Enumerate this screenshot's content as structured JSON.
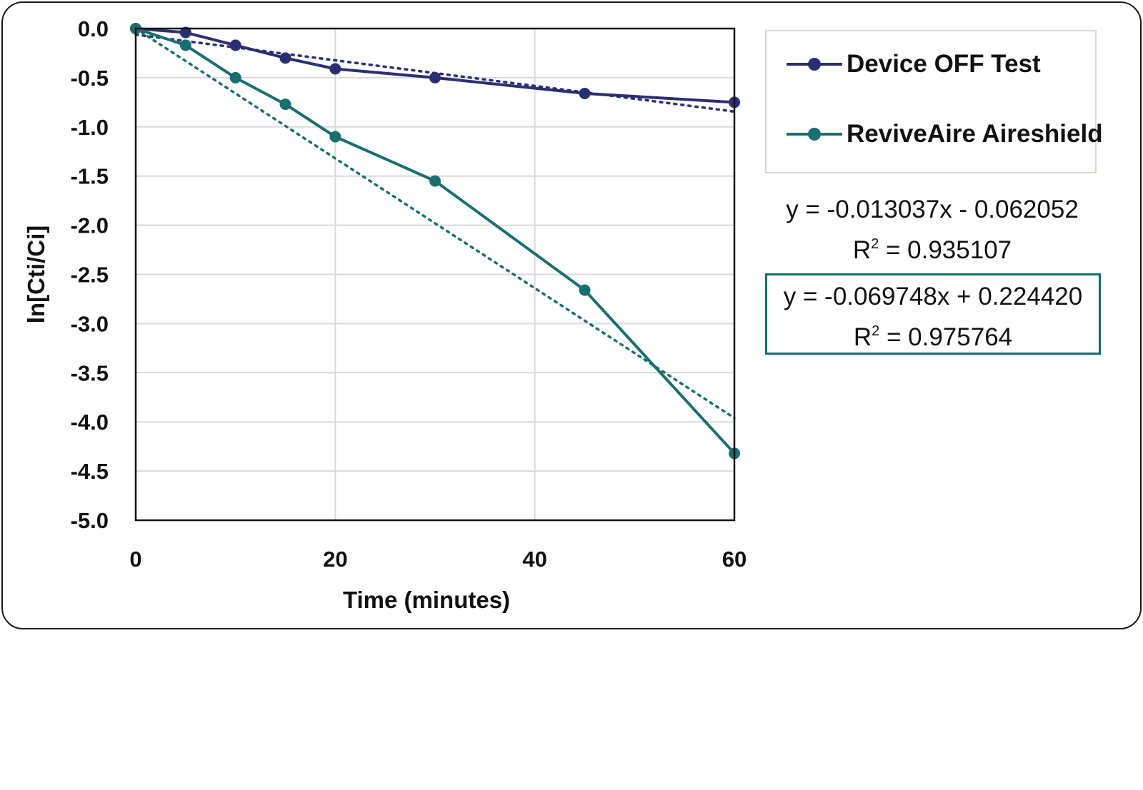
{
  "chart_data": {
    "type": "line",
    "xlabel": "Time (minutes)",
    "ylabel": "ln[Cti/Ci]",
    "xlim": [
      0,
      60
    ],
    "ylim": [
      -5.0,
      0.0
    ],
    "x_ticks": [
      "0",
      "20",
      "40",
      "60"
    ],
    "x_tick_values": [
      0,
      20,
      40,
      60
    ],
    "y_ticks": [
      "0.0",
      "-0.5",
      "-1.0",
      "-1.5",
      "-2.0",
      "-2.5",
      "-3.0",
      "-3.5",
      "-4.0",
      "-4.5",
      "-5.0"
    ],
    "y_tick_values": [
      0.0,
      -0.5,
      -1.0,
      -1.5,
      -2.0,
      -2.5,
      -3.0,
      -3.5,
      -4.0,
      -4.5,
      -5.0
    ],
    "grid": true,
    "legend_position": "top-right",
    "series": [
      {
        "name": "Device OFF Test",
        "color": "#2b2f72",
        "x": [
          0,
          5,
          10,
          15,
          20,
          30,
          45,
          60
        ],
        "y": [
          0.0,
          -0.04,
          -0.17,
          -0.3,
          -0.41,
          -0.5,
          -0.66,
          -0.75
        ],
        "trendline": {
          "slope": -0.013037,
          "intercept": -0.062052,
          "style": "dotted"
        },
        "equation": "y = -0.013037x - 0.062052",
        "r2_label": "R",
        "r2_value": " = 0.935107"
      },
      {
        "name": "ReviveAire Aireshield",
        "color": "#1a6e6e",
        "x": [
          0,
          5,
          10,
          15,
          20,
          30,
          45,
          60
        ],
        "y": [
          0.0,
          -0.17,
          -0.5,
          -0.77,
          -1.1,
          -1.55,
          -2.66,
          -4.32
        ],
        "trendline": {
          "slope": -0.069748,
          "intercept": 0.22442,
          "style": "dotted"
        },
        "equation": "y = -0.069748x + 0.224420",
        "r2_label": "R",
        "r2_value": " = 0.975764"
      }
    ]
  }
}
